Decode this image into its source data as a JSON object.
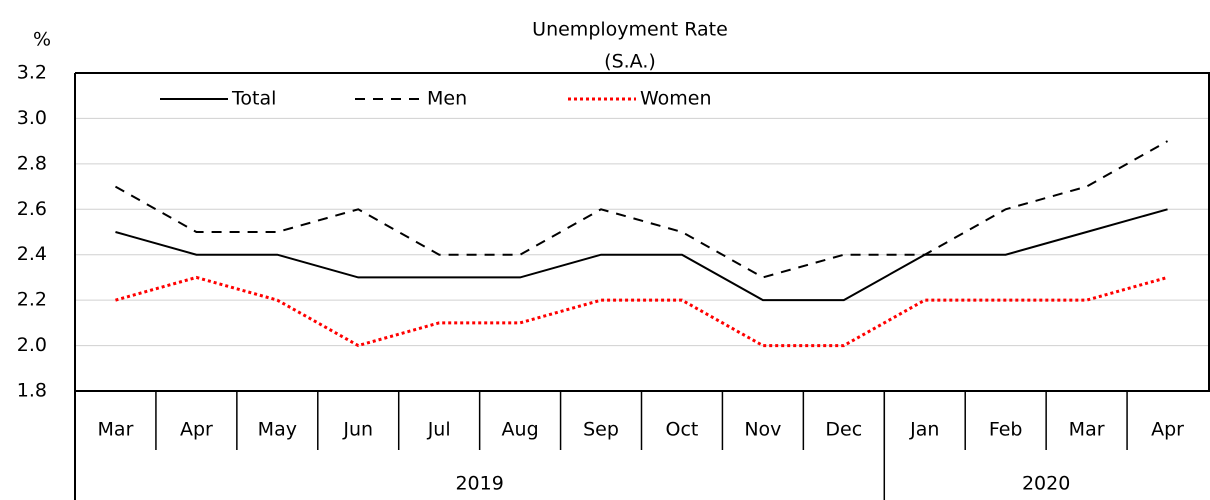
{
  "chart_data": {
    "type": "line",
    "title": "Unemployment Rate",
    "subtitle": "(S.A.)",
    "y_label": "%",
    "categories": [
      "Mar",
      "Apr",
      "May",
      "Jun",
      "Jul",
      "Aug",
      "Sep",
      "Oct",
      "Nov",
      "Dec",
      "Jan",
      "Feb",
      "Mar",
      "Apr"
    ],
    "x_groups": [
      {
        "label": "2019",
        "size": 10
      },
      {
        "label": "2020",
        "size": 4
      }
    ],
    "series": [
      {
        "name": "Total",
        "color": "#000000",
        "dash": "solid",
        "values": [
          2.5,
          2.4,
          2.4,
          2.3,
          2.3,
          2.3,
          2.4,
          2.4,
          2.2,
          2.2,
          2.4,
          2.4,
          2.5,
          2.6
        ]
      },
      {
        "name": "Men",
        "color": "#000000",
        "dash": "dashed",
        "values": [
          2.7,
          2.5,
          2.5,
          2.6,
          2.4,
          2.4,
          2.6,
          2.5,
          2.3,
          2.4,
          2.4,
          2.6,
          2.7,
          2.9
        ]
      },
      {
        "name": "Women",
        "color": "#ff0000",
        "dash": "dotted",
        "values": [
          2.2,
          2.3,
          2.2,
          2.0,
          2.1,
          2.1,
          2.2,
          2.2,
          2.0,
          2.0,
          2.2,
          2.2,
          2.2,
          2.3
        ]
      }
    ],
    "ylim": [
      1.8,
      3.2
    ],
    "yticks": [
      1.8,
      {
        "value": 2,
        "label": "2.0"
      },
      2.2,
      2.4,
      2.6,
      2.8,
      {
        "value": 3,
        "label": "3.0"
      },
      3.2
    ],
    "grid": true,
    "legend": "top-left"
  }
}
